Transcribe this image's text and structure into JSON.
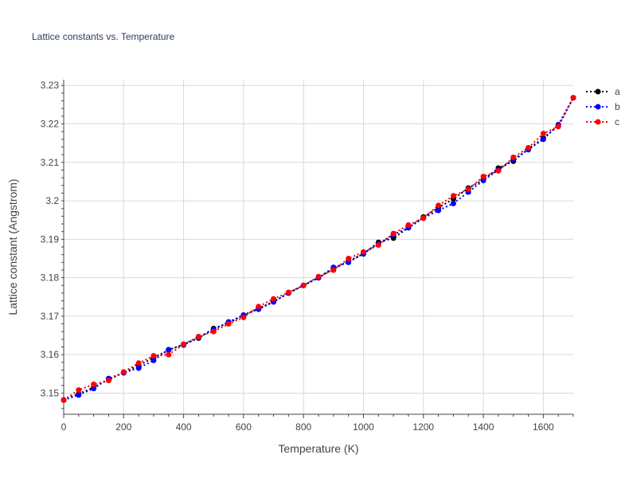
{
  "chart_data": {
    "type": "line",
    "title": "Lattice constants vs. Temperature",
    "xlabel": "Temperature (K)",
    "ylabel": "Lattice constant (Angstrom)",
    "xlim": [
      0,
      1700
    ],
    "ylim": [
      3.1445,
      3.2315
    ],
    "x_ticks": [
      0,
      200,
      400,
      600,
      800,
      1000,
      1200,
      1400,
      1600
    ],
    "x_tick_labels": [
      "0",
      "200",
      "400",
      "600",
      "800",
      "1000",
      "1200",
      "1400",
      "1600"
    ],
    "y_ticks": [
      3.15,
      3.16,
      3.17,
      3.18,
      3.19,
      3.2,
      3.21,
      3.22,
      3.23
    ],
    "y_tick_labels": [
      "3.15",
      "3.16",
      "3.17",
      "3.18",
      "3.19",
      "3.2",
      "3.21",
      "3.22",
      "3.23"
    ],
    "grid": true,
    "legend_position": "top-right",
    "line_style": "dotted",
    "x": [
      0,
      50,
      100,
      150,
      200,
      250,
      300,
      350,
      400,
      450,
      500,
      550,
      600,
      650,
      700,
      750,
      800,
      850,
      900,
      950,
      1000,
      1050,
      1100,
      1150,
      1200,
      1250,
      1300,
      1350,
      1400,
      1450,
      1500,
      1550,
      1600,
      1650,
      1700
    ],
    "series": [
      {
        "name": "a",
        "color": "#000000",
        "values": [
          3.1482,
          3.1498,
          3.1515,
          3.1535,
          3.1553,
          3.1572,
          3.1592,
          3.1612,
          3.1627,
          3.1643,
          3.1668,
          3.1682,
          3.1703,
          3.172,
          3.1738,
          3.176,
          3.178,
          3.18,
          3.1823,
          3.1843,
          3.1862,
          3.1892,
          3.1903,
          3.193,
          3.1958,
          3.1982,
          3.2005,
          3.2033,
          3.2055,
          3.2085,
          3.2103,
          3.2135,
          3.2163,
          3.2195,
          3.2268
        ]
      },
      {
        "name": "b",
        "color": "#0000ff",
        "values": [
          3.1482,
          3.1495,
          3.1512,
          3.1538,
          3.1553,
          3.1565,
          3.1585,
          3.1613,
          3.1625,
          3.1645,
          3.1665,
          3.1685,
          3.1703,
          3.1718,
          3.1737,
          3.176,
          3.178,
          3.18,
          3.1827,
          3.184,
          3.1863,
          3.1888,
          3.1912,
          3.193,
          3.1955,
          3.1975,
          3.1993,
          3.2023,
          3.2053,
          3.208,
          3.2108,
          3.2133,
          3.216,
          3.2198,
          3.2268
        ]
      },
      {
        "name": "c",
        "color": "#ff0000",
        "values": [
          3.1482,
          3.1508,
          3.1523,
          3.1533,
          3.1555,
          3.1578,
          3.1597,
          3.16,
          3.1627,
          3.1647,
          3.166,
          3.168,
          3.1697,
          3.1725,
          3.1745,
          3.1762,
          3.178,
          3.1803,
          3.182,
          3.185,
          3.1867,
          3.1885,
          3.1915,
          3.1937,
          3.1955,
          3.1988,
          3.2013,
          3.203,
          3.2063,
          3.2078,
          3.2113,
          3.2138,
          3.2175,
          3.2193,
          3.2268
        ]
      }
    ]
  }
}
